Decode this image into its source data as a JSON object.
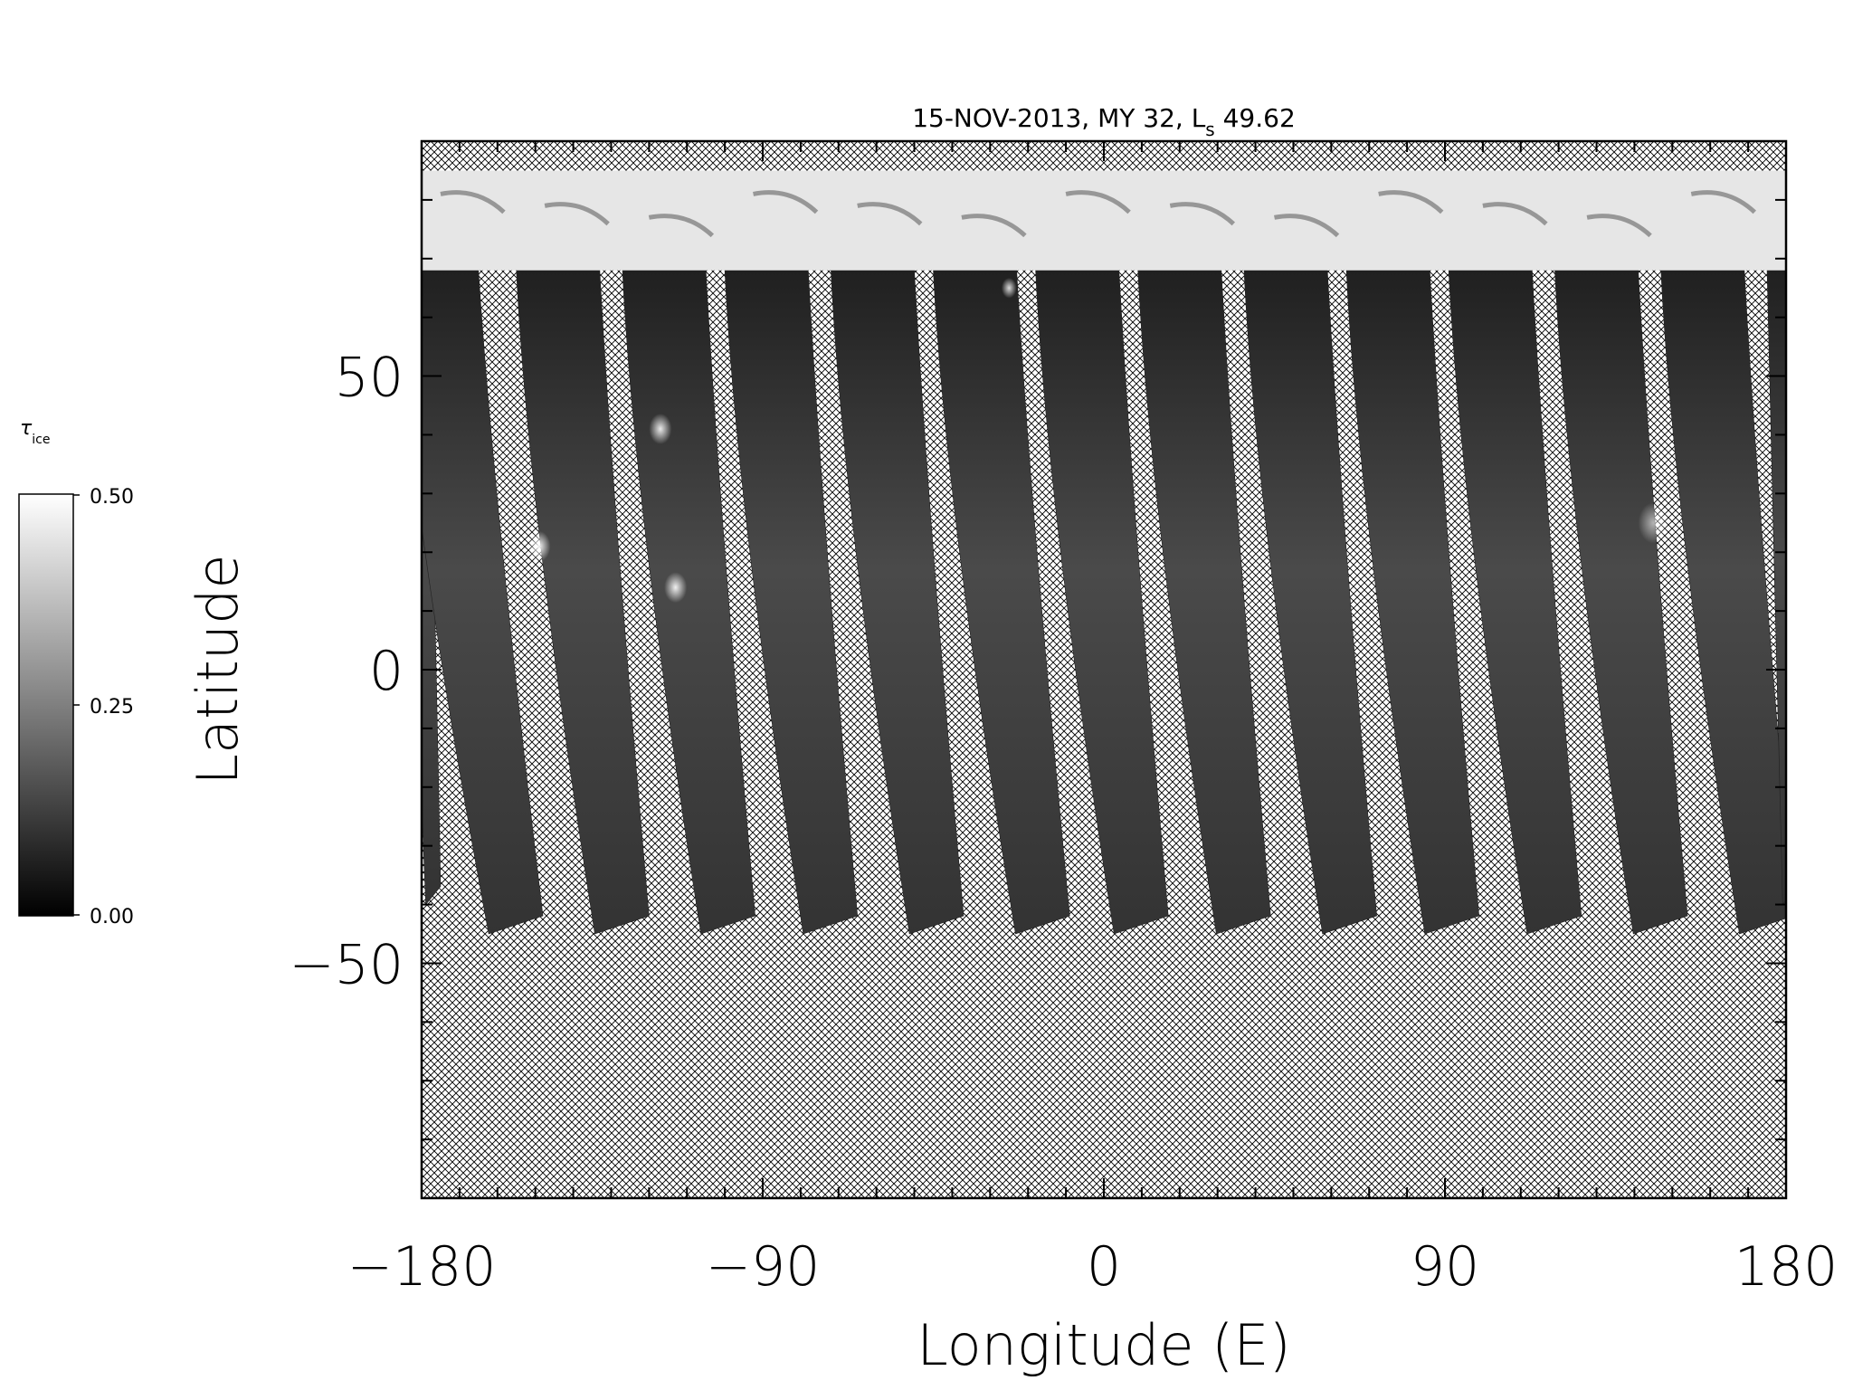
{
  "chart_data": {
    "type": "heatmap",
    "title_main": "15-NOV-2013, MY 32,  L",
    "title_sub": "s",
    "title_tail": " 49.62",
    "xlabel": "Longitude (E)",
    "ylabel": "Latitude",
    "xlim": [
      -180,
      180
    ],
    "ylim": [
      -90,
      90
    ],
    "xticks": [
      -180,
      -90,
      0,
      90,
      180
    ],
    "xtick_labels": [
      "−180",
      "−90",
      "0",
      "90",
      "180"
    ],
    "yticks": [
      50,
      0,
      -50
    ],
    "ytick_labels": [
      "50",
      "0",
      "−50"
    ],
    "x_minor_step": 10,
    "y_minor_step": 10,
    "colorbar": {
      "label_main": "τ",
      "label_sub": "ice",
      "range": [
        0.0,
        0.5
      ],
      "tick_labels": [
        "0.50",
        "0.25",
        "0.00"
      ],
      "colormap": "grayscale"
    },
    "polar_cap": {
      "lat_min": 68,
      "lat_max": 85,
      "value": 0.45
    },
    "no_data_above_lat": 85,
    "no_data_fill": "crosshatch",
    "swaths": [
      {
        "lon_top": -182,
        "lon_bottom": -178,
        "lat_top": 68,
        "lat_bottom": -40,
        "width": 6
      },
      {
        "lon_top": -176,
        "lon_bottom": -159,
        "lat_top": 68,
        "lat_bottom": -45,
        "width": 22
      },
      {
        "lon_top": -144,
        "lon_bottom": -131,
        "lat_top": 68,
        "lat_bottom": -45,
        "width": 22
      },
      {
        "lon_top": -116,
        "lon_bottom": -103,
        "lat_top": 68,
        "lat_bottom": -45,
        "width": 22
      },
      {
        "lon_top": -89,
        "lon_bottom": -76,
        "lat_top": 68,
        "lat_bottom": -45,
        "width": 22
      },
      {
        "lon_top": -61,
        "lon_bottom": -48,
        "lat_top": 68,
        "lat_bottom": -45,
        "width": 22
      },
      {
        "lon_top": -34,
        "lon_bottom": -20,
        "lat_top": 68,
        "lat_bottom": -45,
        "width": 22
      },
      {
        "lon_top": -7,
        "lon_bottom": 6,
        "lat_top": 68,
        "lat_bottom": -45,
        "width": 22
      },
      {
        "lon_top": 20,
        "lon_bottom": 33,
        "lat_top": 68,
        "lat_bottom": -45,
        "width": 22
      },
      {
        "lon_top": 48,
        "lon_bottom": 61,
        "lat_top": 68,
        "lat_bottom": -45,
        "width": 22
      },
      {
        "lon_top": 75,
        "lon_bottom": 88,
        "lat_top": 68,
        "lat_bottom": -45,
        "width": 22
      },
      {
        "lon_top": 102,
        "lon_bottom": 115,
        "lat_top": 68,
        "lat_bottom": -45,
        "width": 22
      },
      {
        "lon_top": 130,
        "lon_bottom": 143,
        "lat_top": 68,
        "lat_bottom": -45,
        "width": 22
      },
      {
        "lon_top": 158,
        "lon_bottom": 171,
        "lat_top": 68,
        "lat_bottom": -45,
        "width": 22
      },
      {
        "lon_top": 178,
        "lon_bottom": 180,
        "lat_top": 68,
        "lat_bottom": -40,
        "width": 6
      }
    ],
    "clouds": [
      {
        "lon": -149,
        "lat": 21,
        "value": 0.48,
        "r": 3
      },
      {
        "lon": -117,
        "lat": 41,
        "value": 0.45,
        "r": 3
      },
      {
        "lon": -113,
        "lat": 14,
        "value": 0.46,
        "r": 3
      },
      {
        "lon": -25,
        "lat": 65,
        "value": 0.42,
        "r": 2
      },
      {
        "lon": 145,
        "lat": 25,
        "value": 0.3,
        "r": 4
      }
    ]
  }
}
